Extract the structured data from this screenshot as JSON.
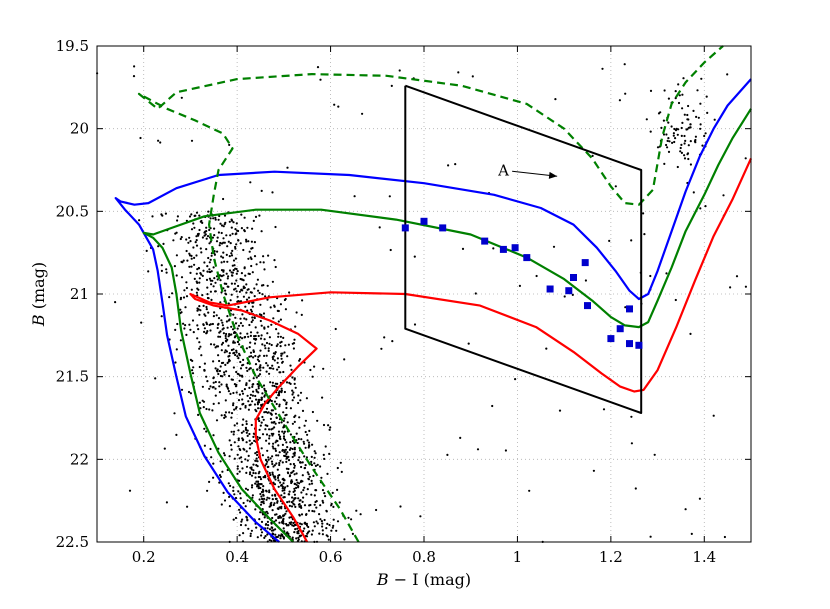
{
  "chart_data": {
    "type": "scatter",
    "title": "",
    "xlabel_italic": "B",
    "xlabel_rest": " − I (mag)",
    "ylabel_italic": "B",
    "ylabel_rest": " (mag)",
    "xlim": [
      0.1,
      1.5
    ],
    "ylim": [
      22.5,
      19.5
    ],
    "y_inverted": true,
    "grid": "dotted",
    "x_ticks": [
      0.2,
      0.4,
      0.6,
      0.8,
      1.0,
      1.2,
      1.4
    ],
    "x_tick_labels": [
      "0.2",
      "0.4",
      "0.6",
      "0.8",
      "1",
      "1.2",
      "1.4"
    ],
    "y_ticks": [
      19.5,
      20.0,
      20.5,
      21.0,
      21.5,
      22.0,
      22.5
    ],
    "y_tick_labels": [
      "19.5",
      "20",
      "20.5",
      "21",
      "21.5",
      "22",
      "22.5"
    ],
    "series": [
      {
        "name": "isochrone-blue",
        "color": "#0000ff",
        "style": "solid",
        "points": [
          [
            0.49,
            22.5
          ],
          [
            0.44,
            22.38
          ],
          [
            0.38,
            22.2
          ],
          [
            0.33,
            21.98
          ],
          [
            0.29,
            21.74
          ],
          [
            0.27,
            21.5
          ],
          [
            0.25,
            21.25
          ],
          [
            0.24,
            21.05
          ],
          [
            0.23,
            20.86
          ],
          [
            0.22,
            20.73
          ],
          [
            0.19,
            20.58
          ],
          [
            0.16,
            20.49
          ],
          [
            0.14,
            20.42
          ],
          [
            0.15,
            20.44
          ],
          [
            0.18,
            20.46
          ],
          [
            0.21,
            20.45
          ],
          [
            0.27,
            20.36
          ],
          [
            0.36,
            20.28
          ],
          [
            0.48,
            20.26
          ],
          [
            0.64,
            20.28
          ],
          [
            0.8,
            20.33
          ],
          [
            0.95,
            20.4
          ],
          [
            1.05,
            20.48
          ],
          [
            1.12,
            20.58
          ],
          [
            1.17,
            20.72
          ],
          [
            1.21,
            20.86
          ],
          [
            1.24,
            20.98
          ],
          [
            1.26,
            21.03
          ],
          [
            1.28,
            21.0
          ],
          [
            1.3,
            20.86
          ],
          [
            1.33,
            20.62
          ],
          [
            1.36,
            20.38
          ],
          [
            1.39,
            20.17
          ],
          [
            1.42,
            20.0
          ],
          [
            1.45,
            19.86
          ],
          [
            1.5,
            19.7
          ]
        ]
      },
      {
        "name": "isochrone-green",
        "color": "#008000",
        "style": "solid",
        "points": [
          [
            0.52,
            22.5
          ],
          [
            0.47,
            22.36
          ],
          [
            0.41,
            22.18
          ],
          [
            0.36,
            21.96
          ],
          [
            0.32,
            21.72
          ],
          [
            0.3,
            21.48
          ],
          [
            0.28,
            21.22
          ],
          [
            0.27,
            21.0
          ],
          [
            0.26,
            20.84
          ],
          [
            0.24,
            20.72
          ],
          [
            0.22,
            20.66
          ],
          [
            0.2,
            20.63
          ],
          [
            0.22,
            20.64
          ],
          [
            0.26,
            20.6
          ],
          [
            0.33,
            20.53
          ],
          [
            0.44,
            20.49
          ],
          [
            0.58,
            20.49
          ],
          [
            0.74,
            20.55
          ],
          [
            0.9,
            20.64
          ],
          [
            1.02,
            20.78
          ],
          [
            1.1,
            20.91
          ],
          [
            1.16,
            21.04
          ],
          [
            1.2,
            21.14
          ],
          [
            1.23,
            21.19
          ],
          [
            1.26,
            21.2
          ],
          [
            1.28,
            21.17
          ],
          [
            1.3,
            21.04
          ],
          [
            1.33,
            20.84
          ],
          [
            1.36,
            20.62
          ],
          [
            1.4,
            20.4
          ],
          [
            1.43,
            20.22
          ],
          [
            1.46,
            20.06
          ],
          [
            1.5,
            19.88
          ]
        ]
      },
      {
        "name": "isochrone-red",
        "color": "#ff0000",
        "style": "solid",
        "points": [
          [
            0.55,
            22.5
          ],
          [
            0.52,
            22.35
          ],
          [
            0.48,
            22.18
          ],
          [
            0.45,
            22.0
          ],
          [
            0.44,
            21.86
          ],
          [
            0.44,
            21.76
          ],
          [
            0.46,
            21.66
          ],
          [
            0.49,
            21.56
          ],
          [
            0.53,
            21.44
          ],
          [
            0.57,
            21.33
          ],
          [
            0.53,
            21.24
          ],
          [
            0.47,
            21.16
          ],
          [
            0.41,
            21.1
          ],
          [
            0.35,
            21.07
          ],
          [
            0.31,
            21.03
          ],
          [
            0.3,
            21.0
          ],
          [
            0.34,
            21.05
          ],
          [
            0.38,
            21.07
          ],
          [
            0.47,
            21.02
          ],
          [
            0.6,
            20.99
          ],
          [
            0.76,
            21.0
          ],
          [
            0.92,
            21.07
          ],
          [
            1.04,
            21.2
          ],
          [
            1.12,
            21.35
          ],
          [
            1.18,
            21.48
          ],
          [
            1.22,
            21.56
          ],
          [
            1.25,
            21.59
          ],
          [
            1.27,
            21.58
          ],
          [
            1.3,
            21.46
          ],
          [
            1.34,
            21.2
          ],
          [
            1.38,
            20.92
          ],
          [
            1.42,
            20.65
          ],
          [
            1.46,
            20.43
          ],
          [
            1.5,
            20.18
          ]
        ]
      },
      {
        "name": "isochrone-green-dashed",
        "color": "#008000",
        "style": "dashed",
        "points": [
          [
            0.66,
            22.5
          ],
          [
            0.62,
            22.3
          ],
          [
            0.56,
            22.05
          ],
          [
            0.5,
            21.78
          ],
          [
            0.44,
            21.5
          ],
          [
            0.4,
            21.25
          ],
          [
            0.37,
            21.0
          ],
          [
            0.35,
            20.78
          ],
          [
            0.34,
            20.58
          ],
          [
            0.35,
            20.4
          ],
          [
            0.36,
            20.25
          ],
          [
            0.39,
            20.12
          ],
          [
            0.37,
            20.03
          ],
          [
            0.31,
            19.95
          ],
          [
            0.25,
            19.88
          ],
          [
            0.21,
            19.82
          ],
          [
            0.19,
            19.79
          ],
          [
            0.23,
            19.88
          ],
          [
            0.27,
            19.78
          ],
          [
            0.4,
            19.7
          ],
          [
            0.56,
            19.67
          ],
          [
            0.72,
            19.68
          ],
          [
            0.88,
            19.74
          ],
          [
            1.02,
            19.85
          ],
          [
            1.1,
            20.0
          ],
          [
            1.16,
            20.18
          ],
          [
            1.2,
            20.35
          ],
          [
            1.23,
            20.45
          ],
          [
            1.26,
            20.46
          ],
          [
            1.29,
            20.37
          ],
          [
            1.31,
            20.05
          ],
          [
            1.33,
            19.85
          ],
          [
            1.36,
            19.72
          ],
          [
            1.4,
            19.6
          ],
          [
            1.44,
            19.5
          ]
        ]
      },
      {
        "name": "selection-box",
        "color": "#000000",
        "style": "solid",
        "points": [
          [
            0.76,
            19.74
          ],
          [
            1.265,
            20.25
          ],
          [
            1.265,
            21.72
          ],
          [
            0.76,
            21.21
          ],
          [
            0.76,
            19.74
          ]
        ]
      }
    ],
    "blue_squares": {
      "color": "#0000cc",
      "points": [
        [
          0.76,
          20.6
        ],
        [
          0.8,
          20.56
        ],
        [
          0.84,
          20.6
        ],
        [
          0.93,
          20.68
        ],
        [
          0.97,
          20.73
        ],
        [
          0.995,
          20.72
        ],
        [
          1.02,
          20.78
        ],
        [
          1.07,
          20.97
        ],
        [
          1.11,
          20.98
        ],
        [
          1.12,
          20.9
        ],
        [
          1.145,
          20.81
        ],
        [
          1.15,
          21.07
        ],
        [
          1.2,
          21.27
        ],
        [
          1.22,
          21.21
        ],
        [
          1.24,
          21.09
        ],
        [
          1.24,
          21.3
        ],
        [
          1.26,
          21.31
        ]
      ]
    },
    "annotation": {
      "text": "A",
      "target_x": 1.1,
      "target_y": 20.3
    }
  }
}
